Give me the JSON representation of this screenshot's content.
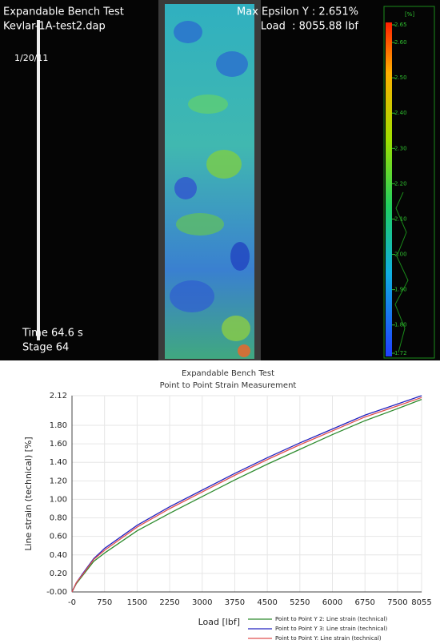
{
  "screenshot": {
    "title": "Expandable Bench Test",
    "file": "Kevlar-1A-test2.dap",
    "max_epsilon": "Max Epsilon Y : 2.651%",
    "load": "Load  : 8055.88 lbf",
    "date": "1/20/11",
    "time": "Time 64.6 s",
    "stage": "Stage 64",
    "colorbar": {
      "unit": "[%]",
      "lim": [
        1.72,
        2.65
      ],
      "ticks": [
        2.65,
        {
          "value": 2.6,
          "label": "2.60"
        },
        {
          "value": 2.5,
          "label": "2.50"
        },
        {
          "value": 2.4,
          "label": "2.40"
        },
        {
          "value": 2.3,
          "label": "2.30"
        },
        {
          "value": 2.2,
          "label": "2.20"
        },
        {
          "value": 2.1,
          "label": "2.10"
        },
        {
          "value": 2,
          "label": "2.00"
        },
        {
          "value": 1.9,
          "label": "1.90"
        },
        {
          "value": 1.8,
          "label": "1.80"
        },
        1.72
      ]
    }
  },
  "chart_data": {
    "type": "line",
    "title": "Expandable Bench Test",
    "subtitle": "Point to Point Strain Measurement",
    "x_label": "Load [lbf]",
    "y_label": "Line strain (technical) [%]",
    "x": [
      0,
      100,
      250,
      500,
      750,
      1500,
      2250,
      3000,
      3750,
      4500,
      5250,
      6000,
      6750,
      7500,
      8055
    ],
    "series": [
      {
        "name": "Point to Point Y 2: Line strain (technical)",
        "color": "#2e8b2e",
        "values": [
          0,
          0.09,
          0.18,
          0.33,
          0.42,
          0.66,
          0.85,
          1.03,
          1.21,
          1.38,
          1.54,
          1.7,
          1.85,
          1.98,
          2.08
        ]
      },
      {
        "name": "Point to Point Y 3: Line strain (technical)",
        "color": "#2424c0",
        "values": [
          0,
          0.1,
          0.2,
          0.36,
          0.47,
          0.72,
          0.92,
          1.1,
          1.28,
          1.45,
          1.61,
          1.76,
          1.91,
          2.03,
          2.12
        ]
      },
      {
        "name": "Point to Point Y: Line strain (technical)",
        "color": "#e05050",
        "values": [
          0,
          0.1,
          0.19,
          0.35,
          0.45,
          0.7,
          0.9,
          1.08,
          1.26,
          1.43,
          1.59,
          1.74,
          1.89,
          2.01,
          2.1
        ]
      }
    ],
    "xlim": [
      0,
      8055
    ],
    "xticks": [
      {
        "value": 0,
        "label": "-0"
      },
      750,
      1500,
      2250,
      3000,
      3750,
      4500,
      5250,
      6000,
      6750,
      7500,
      8055
    ],
    "ylim": [
      0,
      2.12
    ],
    "yticks": [
      {
        "value": 0,
        "label": "-0.00"
      },
      {
        "value": 0.2,
        "label": "0.20"
      },
      {
        "value": 0.4,
        "label": "0.40"
      },
      {
        "value": 0.6,
        "label": "0.60"
      },
      {
        "value": 0.8,
        "label": "0.80"
      },
      {
        "value": 1,
        "label": "1.00"
      },
      {
        "value": 1.2,
        "label": "1.20"
      },
      {
        "value": 1.4,
        "label": "1.40"
      },
      {
        "value": 1.6,
        "label": "1.60"
      },
      {
        "value": 1.8,
        "label": "1.80"
      },
      2.12
    ],
    "grid": true
  }
}
